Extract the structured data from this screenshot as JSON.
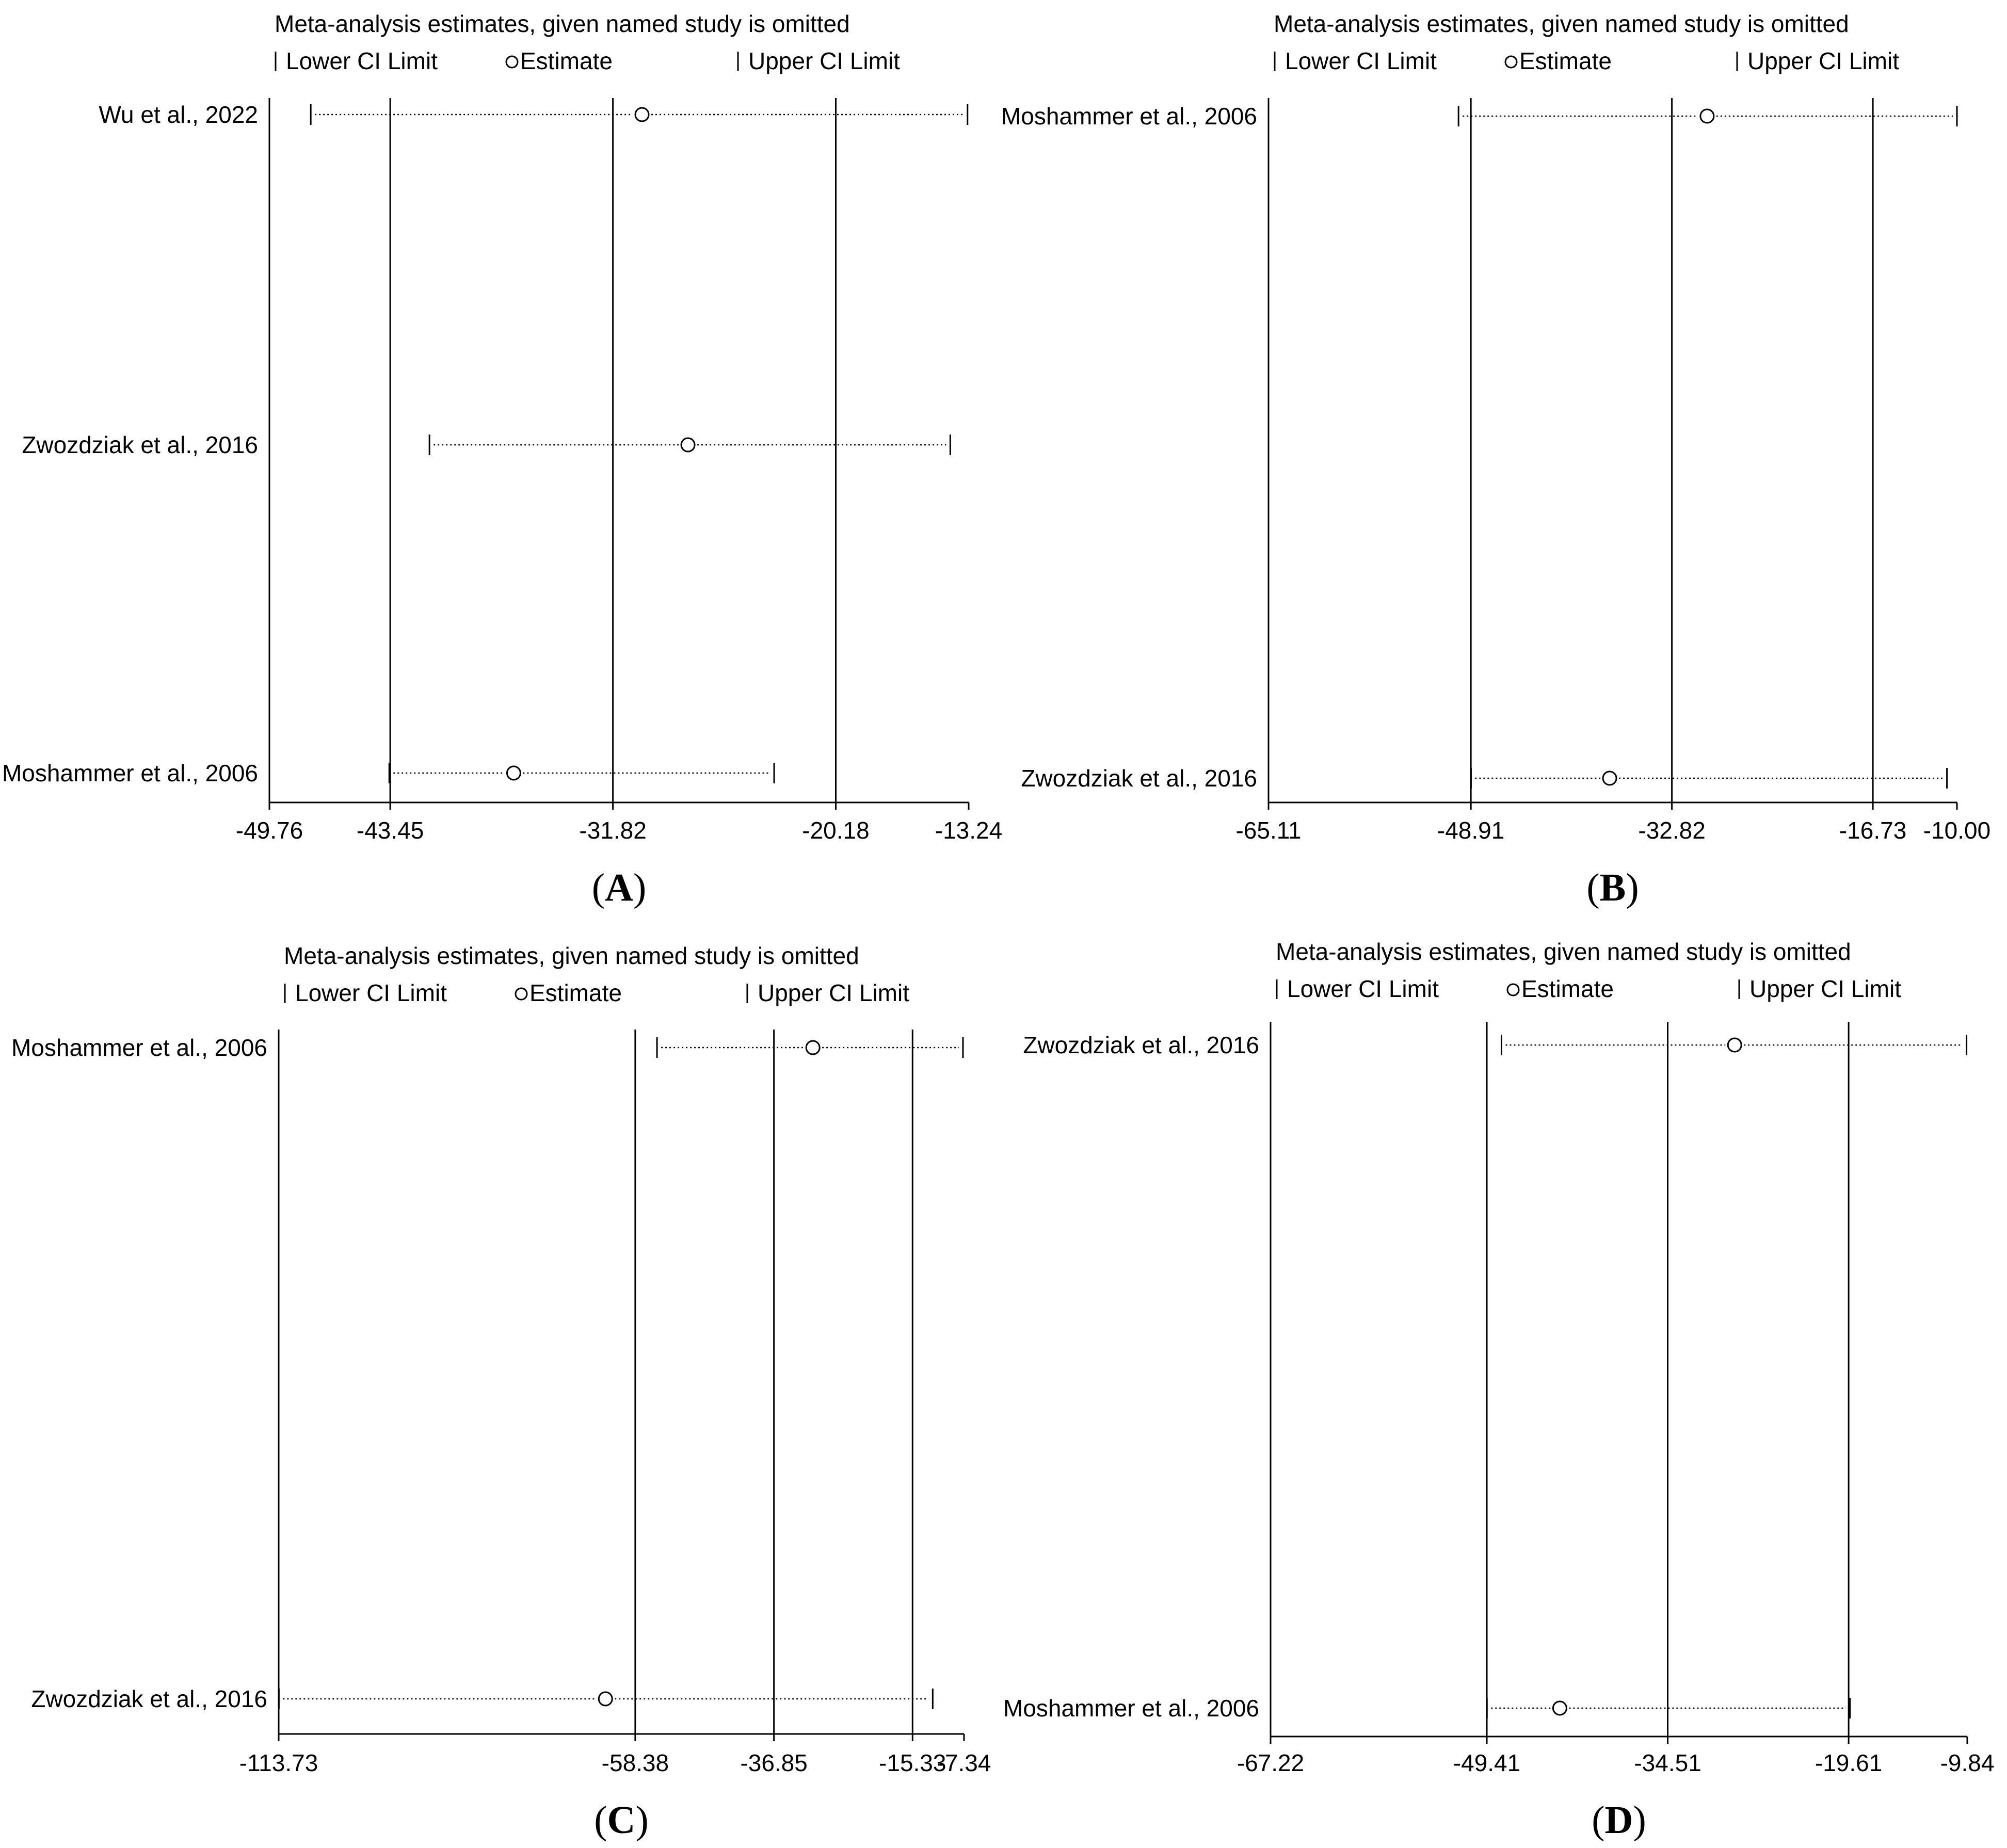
{
  "chart_data": [
    {
      "type": "sensitivity",
      "panel": "A",
      "header": "Meta-analysis estimates, given named study is omitted",
      "legend": {
        "lower": "Lower CI Limit",
        "estimate": "Estimate",
        "upper": "Upper CI Limit"
      },
      "ticks": [
        "-49.76",
        "-43.45",
        "-31.82",
        "-20.18",
        "-13.24"
      ],
      "xlim": [
        -49.76,
        -13.24
      ],
      "reference": {
        "lower": -43.45,
        "estimate": -31.82,
        "upper": -20.18
      },
      "studies": [
        {
          "name": "Wu et al., 2022",
          "lower": -47.6,
          "estimate": -30.3,
          "upper": -13.3
        },
        {
          "name": "Zwozdziak et al., 2016",
          "lower": -41.4,
          "estimate": -27.9,
          "upper": -14.2
        },
        {
          "name": "Moshammer et al., 2006",
          "lower": -43.5,
          "estimate": -37.0,
          "upper": -23.4
        }
      ]
    },
    {
      "type": "sensitivity",
      "panel": "B",
      "header": "Meta-analysis estimates, given named study is omitted",
      "legend": {
        "lower": "Lower CI Limit",
        "estimate": "Estimate",
        "upper": "Upper CI Limit"
      },
      "ticks": [
        "-65.11",
        "-48.91",
        "-32.82",
        "-16.73",
        "-10.00"
      ],
      "xlim": [
        -65.11,
        -10.0
      ],
      "reference": {
        "lower": -48.91,
        "estimate": -32.82,
        "upper": -16.73
      },
      "studies": [
        {
          "name": "Moshammer et al., 2006",
          "lower": -49.9,
          "estimate": -30.0,
          "upper": -10.0
        },
        {
          "name": "Zwozdziak et al., 2016",
          "lower": -48.9,
          "estimate": -37.8,
          "upper": -10.8
        }
      ]
    },
    {
      "type": "sensitivity",
      "panel": "C",
      "header": "Meta-analysis estimates, given named study is omitted",
      "legend": {
        "lower": "Lower CI Limit",
        "estimate": "Estimate",
        "upper": "Upper CI Limit"
      },
      "ticks": [
        "-113.73",
        "-58.38",
        "-36.85",
        "-15.33",
        "-7.34"
      ],
      "xlim": [
        -113.73,
        -7.34
      ],
      "reference": {
        "lower": -58.38,
        "estimate": -36.85,
        "upper": -15.33
      },
      "studies": [
        {
          "name": "Moshammer et al., 2006",
          "lower": -55.0,
          "estimate": -30.8,
          "upper": -7.5
        },
        {
          "name": "Zwozdziak et al., 2016",
          "lower": -113.7,
          "estimate": -63.0,
          "upper": -12.2
        }
      ]
    },
    {
      "type": "sensitivity",
      "panel": "D",
      "header": "Meta-analysis estimates, given named study is omitted",
      "legend": {
        "lower": "Lower CI Limit",
        "estimate": "Estimate",
        "upper": "Upper CI Limit"
      },
      "ticks": [
        "-67.22",
        "-49.41",
        "-34.51",
        "-19.61",
        "-9.84"
      ],
      "xlim": [
        -67.22,
        -9.84
      ],
      "reference": {
        "lower": -49.41,
        "estimate": -34.51,
        "upper": -19.61
      },
      "studies": [
        {
          "name": "Zwozdziak et al., 2016",
          "lower": -48.2,
          "estimate": -29.0,
          "upper": -9.9
        },
        {
          "name": "Moshammer et al., 2006",
          "lower": -49.4,
          "estimate": -43.4,
          "upper": -19.5
        }
      ]
    }
  ]
}
